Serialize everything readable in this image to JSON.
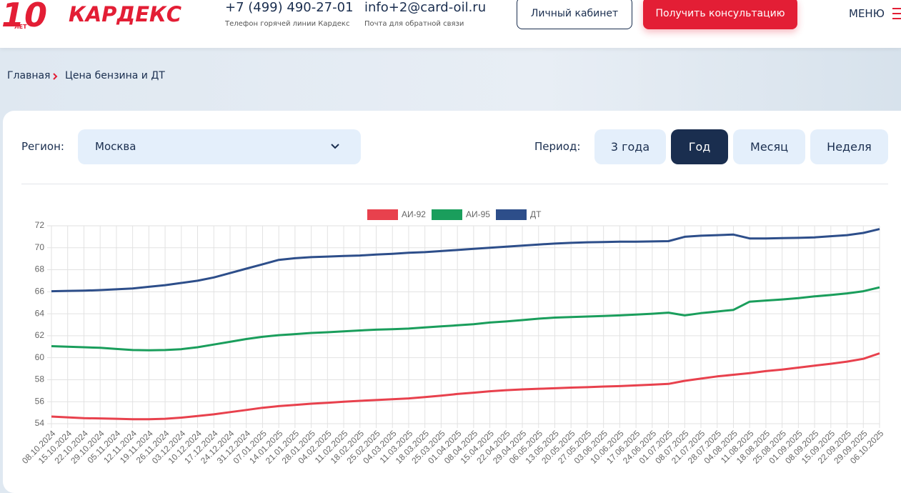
{
  "header": {
    "logo_number": "10",
    "logo_years": "ЛЕТ",
    "logo_text": "КАРДЕКС",
    "phone": "+7 (499) 490-27-01",
    "phone_caption": "Телефон горячей линии Кардекс",
    "email": "info+2@card-oil.ru",
    "email_caption": "Почта для обратной связи",
    "account_button": "Личный кабинет",
    "consult_button": "Получить консультацию",
    "menu": "МЕНЮ"
  },
  "breadcrumbs": [
    "Главная",
    "Цена бензина и ДТ"
  ],
  "filters": {
    "region_label": "Регион:",
    "region_value": "Москва",
    "period_label": "Период:",
    "periods": [
      "3 года",
      "Год",
      "Месяц",
      "Неделя"
    ],
    "active_period": 1
  },
  "chart_data": {
    "type": "line",
    "categories": [
      "08.10.2024",
      "15.10.2024",
      "22.10.2024",
      "29.10.2024",
      "05.11.2024",
      "12.11.2024",
      "19.11.2024",
      "26.11.2024",
      "03.12.2024",
      "10.12.2024",
      "17.12.2024",
      "24.12.2024",
      "31.12.2024",
      "07.01.2025",
      "14.01.2025",
      "21.01.2025",
      "28.01.2025",
      "04.02.2025",
      "11.02.2025",
      "18.02.2025",
      "25.02.2025",
      "04.03.2025",
      "11.03.2025",
      "18.03.2025",
      "25.03.2025",
      "01.04.2025",
      "08.04.2025",
      "15.04.2025",
      "22.04.2025",
      "29.04.2025",
      "06.05.2025",
      "13.05.2025",
      "20.05.2025",
      "27.05.2025",
      "03.06.2025",
      "10.06.2025",
      "17.06.2025",
      "24.06.2025",
      "01.07.2025",
      "08.07.2025",
      "21.07.2025",
      "28.07.2025",
      "04.08.2025",
      "11.08.2025",
      "18.08.2025",
      "25.08.2025",
      "01.09.2025",
      "08.09.2025",
      "15.09.2025",
      "22.09.2025",
      "29.09.2025",
      "06.10.2025"
    ],
    "series": [
      {
        "name": "АИ-92",
        "color": "#e8414d",
        "values": [
          54.65,
          54.58,
          54.5,
          54.48,
          54.45,
          54.4,
          54.4,
          54.45,
          54.55,
          54.7,
          54.85,
          55.05,
          55.25,
          55.45,
          55.6,
          55.7,
          55.82,
          55.9,
          56.0,
          56.08,
          56.15,
          56.22,
          56.3,
          56.42,
          56.55,
          56.7,
          56.82,
          56.95,
          57.05,
          57.12,
          57.18,
          57.22,
          57.28,
          57.32,
          57.38,
          57.42,
          57.48,
          57.55,
          57.62,
          57.9,
          58.1,
          58.3,
          58.45,
          58.6,
          58.78,
          58.92,
          59.1,
          59.28,
          59.45,
          59.65,
          59.9,
          60.4
        ]
      },
      {
        "name": "АИ-95",
        "color": "#1a9e5c",
        "values": [
          61.05,
          61.0,
          60.95,
          60.9,
          60.8,
          60.7,
          60.68,
          60.7,
          60.78,
          60.95,
          61.2,
          61.45,
          61.7,
          61.9,
          62.05,
          62.15,
          62.25,
          62.32,
          62.4,
          62.48,
          62.55,
          62.6,
          62.65,
          62.75,
          62.85,
          62.95,
          63.05,
          63.2,
          63.3,
          63.42,
          63.55,
          63.65,
          63.7,
          63.75,
          63.8,
          63.85,
          63.92,
          64.0,
          64.1,
          63.85,
          64.05,
          64.2,
          64.35,
          65.1,
          65.2,
          65.3,
          65.42,
          65.58,
          65.7,
          65.85,
          66.05,
          66.4
        ]
      },
      {
        "name": "ДТ",
        "color": "#2d4e8a",
        "values": [
          66.05,
          66.08,
          66.1,
          66.15,
          66.22,
          66.3,
          66.45,
          66.6,
          66.8,
          67.0,
          67.3,
          67.7,
          68.1,
          68.5,
          68.9,
          69.05,
          69.15,
          69.2,
          69.25,
          69.3,
          69.38,
          69.45,
          69.55,
          69.6,
          69.7,
          69.8,
          69.9,
          70.0,
          70.1,
          70.2,
          70.3,
          70.38,
          70.45,
          70.5,
          70.52,
          70.55,
          70.55,
          70.58,
          70.6,
          71.0,
          71.1,
          71.15,
          71.2,
          70.85,
          70.85,
          70.88,
          70.9,
          70.95,
          71.05,
          71.15,
          71.35,
          71.7
        ]
      }
    ],
    "ylim": [
      54,
      72
    ],
    "yticks": [
      54,
      56,
      58,
      60,
      62,
      64,
      66,
      68,
      70,
      72
    ],
    "grid": true,
    "legend": "top"
  }
}
